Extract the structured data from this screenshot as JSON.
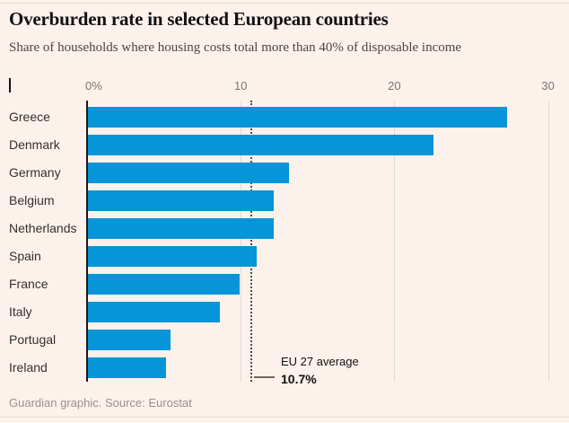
{
  "page": {
    "title": "Overburden rate in selected European countries",
    "subtitle": "Share of households where housing costs total more than 40% of disposable income",
    "footer": "Guardian graphic. Source: Eurostat"
  },
  "chart_data": {
    "type": "bar",
    "orientation": "horizontal",
    "title": "Overburden rate in selected European countries",
    "subtitle": "Share of households where housing costs total more than 40% of disposable income",
    "categories": [
      "Greece",
      "Denmark",
      "Germany",
      "Belgium",
      "Netherlands",
      "Spain",
      "France",
      "Italy",
      "Portugal",
      "Ireland"
    ],
    "values": [
      27.3,
      22.5,
      13.1,
      12.1,
      12.1,
      11.0,
      9.9,
      8.6,
      5.4,
      5.1
    ],
    "xlim": [
      0,
      30
    ],
    "x_ticks": [
      {
        "value": 0,
        "label": "0%"
      },
      {
        "value": 10,
        "label": "10"
      },
      {
        "value": 20,
        "label": "20"
      },
      {
        "value": 30,
        "label": "30"
      }
    ],
    "grid": "vertical-light",
    "bar_color": "#0695d8",
    "annotation": {
      "label": "EU 27 average",
      "value": 10.7,
      "value_label": "10.7%"
    },
    "source": "Guardian graphic. Source: Eurostat"
  }
}
